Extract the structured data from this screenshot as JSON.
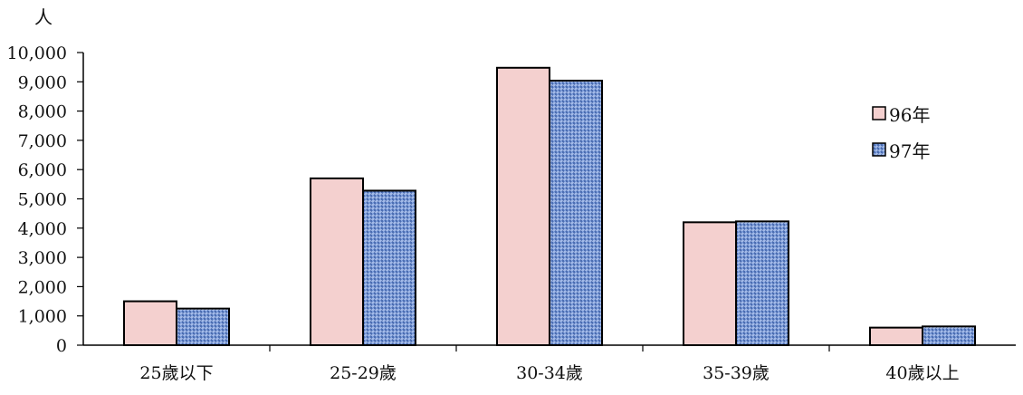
{
  "chart_data": {
    "type": "bar",
    "ylabel": "人",
    "categories": [
      "25歲以下",
      "25-29歲",
      "30-34歲",
      "35-39歲",
      "40歲以上"
    ],
    "ylim": [
      0,
      10000
    ],
    "yticks": [
      "0",
      "1,000",
      "2,000",
      "3,000",
      "4,000",
      "5,000",
      "6,000",
      "7,000",
      "8,000",
      "9,000",
      "10,000"
    ],
    "grid": false,
    "legend_position": "right",
    "series": [
      {
        "name": "96年",
        "values": [
          1500,
          5700,
          9480,
          4200,
          600
        ],
        "color": "#f4d0cf",
        "pattern": "solid"
      },
      {
        "name": "97年",
        "values": [
          1250,
          5280,
          9040,
          4230,
          640
        ],
        "color": "#6d8fd0",
        "pattern": "woven"
      }
    ]
  }
}
